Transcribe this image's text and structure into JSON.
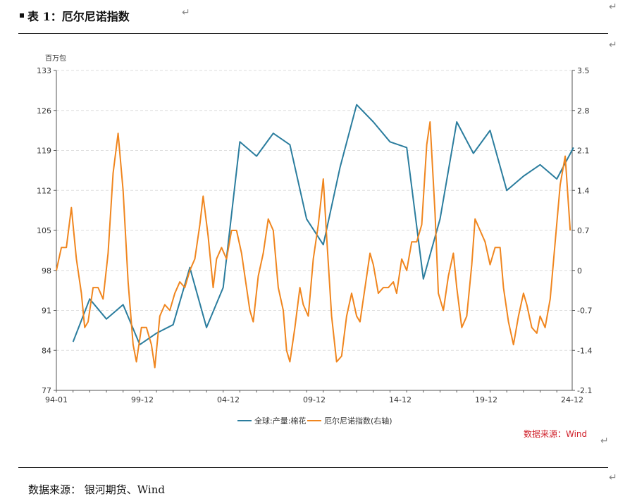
{
  "header": {
    "title": "表 1：厄尔尼诺指数"
  },
  "footer": {
    "source": "数据来源：  银河期货、Wind"
  },
  "chart_data": {
    "type": "line",
    "title": "表 1：厄尔尼诺指数",
    "left_axis_unit": "百万包",
    "source_label": "数据来源：Wind",
    "x_tick_labels": [
      "94-01",
      "99-12",
      "04-12",
      "09-12",
      "14-12",
      "19-12",
      "24-12"
    ],
    "x_range": [
      1994.0,
      2024.92
    ],
    "y_left": {
      "min": 77,
      "max": 133,
      "ticks": [
        77,
        84,
        91,
        98,
        105,
        112,
        119,
        126,
        133
      ]
    },
    "y_right": {
      "min": -2.1,
      "max": 3.5,
      "ticks": [
        "-2.1",
        "-1.4",
        "-0.7",
        "0",
        "0.7",
        "1.4",
        "2.1",
        "2.8",
        "3.5"
      ]
    },
    "grid": "horizontal dashed",
    "legend_position": "bottom",
    "colors": {
      "production": "#2b7d9e",
      "enso": "#f0861f"
    },
    "series": [
      {
        "name": "全球:产量:棉花",
        "axis": "left",
        "points": [
          [
            1995.0,
            85.5
          ],
          [
            1996.0,
            93.0
          ],
          [
            1997.0,
            89.5
          ],
          [
            1998.0,
            92.0
          ],
          [
            1999.0,
            85.0
          ],
          [
            2000.0,
            87.0
          ],
          [
            2001.0,
            88.5
          ],
          [
            2002.0,
            98.5
          ],
          [
            2003.0,
            88.0
          ],
          [
            2004.0,
            95.0
          ],
          [
            2005.0,
            120.5
          ],
          [
            2006.0,
            118.0
          ],
          [
            2007.0,
            122.0
          ],
          [
            2008.0,
            120.0
          ],
          [
            2009.0,
            107.0
          ],
          [
            2010.0,
            102.5
          ],
          [
            2011.0,
            116.0
          ],
          [
            2012.0,
            127.0
          ],
          [
            2013.0,
            124.0
          ],
          [
            2014.0,
            120.5
          ],
          [
            2015.0,
            119.5
          ],
          [
            2016.0,
            96.5
          ],
          [
            2017.0,
            107.0
          ],
          [
            2018.0,
            124.0
          ],
          [
            2019.0,
            118.5
          ],
          [
            2020.0,
            122.5
          ],
          [
            2021.0,
            112.0
          ],
          [
            2022.0,
            114.5
          ],
          [
            2023.0,
            116.5
          ],
          [
            2024.0,
            114.0
          ],
          [
            2025.0,
            119.5
          ]
        ]
      },
      {
        "name": "厄尔尼诺指数(右轴)",
        "axis": "right",
        "points": [
          [
            1994.0,
            0.0
          ],
          [
            1994.3,
            0.4
          ],
          [
            1994.6,
            0.4
          ],
          [
            1994.9,
            1.1
          ],
          [
            1995.2,
            0.2
          ],
          [
            1995.5,
            -0.4
          ],
          [
            1995.7,
            -1.0
          ],
          [
            1995.9,
            -0.9
          ],
          [
            1996.2,
            -0.3
          ],
          [
            1996.5,
            -0.3
          ],
          [
            1996.8,
            -0.5
          ],
          [
            1997.1,
            0.3
          ],
          [
            1997.4,
            1.7
          ],
          [
            1997.7,
            2.4
          ],
          [
            1998.0,
            1.4
          ],
          [
            1998.3,
            -0.2
          ],
          [
            1998.6,
            -1.3
          ],
          [
            1998.8,
            -1.6
          ],
          [
            1999.1,
            -1.0
          ],
          [
            1999.4,
            -1.0
          ],
          [
            1999.7,
            -1.3
          ],
          [
            1999.9,
            -1.7
          ],
          [
            2000.2,
            -0.8
          ],
          [
            2000.5,
            -0.6
          ],
          [
            2000.8,
            -0.7
          ],
          [
            2001.1,
            -0.4
          ],
          [
            2001.4,
            -0.2
          ],
          [
            2001.7,
            -0.3
          ],
          [
            2002.0,
            -0.0
          ],
          [
            2002.3,
            0.2
          ],
          [
            2002.6,
            0.8
          ],
          [
            2002.8,
            1.3
          ],
          [
            2003.1,
            0.6
          ],
          [
            2003.4,
            -0.3
          ],
          [
            2003.6,
            0.2
          ],
          [
            2003.9,
            0.4
          ],
          [
            2004.2,
            0.2
          ],
          [
            2004.5,
            0.7
          ],
          [
            2004.8,
            0.7
          ],
          [
            2005.1,
            0.3
          ],
          [
            2005.3,
            -0.1
          ],
          [
            2005.6,
            -0.7
          ],
          [
            2005.8,
            -0.9
          ],
          [
            2006.1,
            -0.1
          ],
          [
            2006.4,
            0.3
          ],
          [
            2006.7,
            0.9
          ],
          [
            2007.0,
            0.7
          ],
          [
            2007.3,
            -0.3
          ],
          [
            2007.6,
            -0.7
          ],
          [
            2007.8,
            -1.4
          ],
          [
            2008.0,
            -1.6
          ],
          [
            2008.3,
            -1.0
          ],
          [
            2008.6,
            -0.3
          ],
          [
            2008.8,
            -0.6
          ],
          [
            2009.1,
            -0.8
          ],
          [
            2009.4,
            0.2
          ],
          [
            2009.7,
            0.8
          ],
          [
            2010.0,
            1.6
          ],
          [
            2010.2,
            0.6
          ],
          [
            2010.5,
            -0.8
          ],
          [
            2010.8,
            -1.6
          ],
          [
            2011.1,
            -1.5
          ],
          [
            2011.4,
            -0.8
          ],
          [
            2011.7,
            -0.4
          ],
          [
            2012.0,
            -0.8
          ],
          [
            2012.2,
            -0.9
          ],
          [
            2012.5,
            -0.3
          ],
          [
            2012.8,
            0.3
          ],
          [
            2013.0,
            0.1
          ],
          [
            2013.3,
            -0.4
          ],
          [
            2013.6,
            -0.3
          ],
          [
            2013.9,
            -0.3
          ],
          [
            2014.2,
            -0.2
          ],
          [
            2014.4,
            -0.4
          ],
          [
            2014.7,
            0.2
          ],
          [
            2015.0,
            0.0
          ],
          [
            2015.3,
            0.5
          ],
          [
            2015.6,
            0.5
          ],
          [
            2015.9,
            0.8
          ],
          [
            2016.2,
            2.2
          ],
          [
            2016.4,
            2.6
          ],
          [
            2016.7,
            1.0
          ],
          [
            2016.9,
            -0.4
          ],
          [
            2017.2,
            -0.7
          ],
          [
            2017.5,
            -0.1
          ],
          [
            2017.8,
            0.3
          ],
          [
            2018.0,
            -0.3
          ],
          [
            2018.3,
            -1.0
          ],
          [
            2018.6,
            -0.8
          ],
          [
            2018.9,
            0.1
          ],
          [
            2019.1,
            0.9
          ],
          [
            2019.4,
            0.7
          ],
          [
            2019.7,
            0.5
          ],
          [
            2020.0,
            0.1
          ],
          [
            2020.3,
            0.4
          ],
          [
            2020.6,
            0.4
          ],
          [
            2020.8,
            -0.3
          ],
          [
            2021.1,
            -0.9
          ],
          [
            2021.4,
            -1.3
          ],
          [
            2021.7,
            -0.8
          ],
          [
            2022.0,
            -0.4
          ],
          [
            2022.2,
            -0.6
          ],
          [
            2022.5,
            -1.0
          ],
          [
            2022.8,
            -1.1
          ],
          [
            2023.0,
            -0.8
          ],
          [
            2023.3,
            -1.0
          ],
          [
            2023.6,
            -0.5
          ],
          [
            2023.9,
            0.5
          ],
          [
            2024.2,
            1.5
          ],
          [
            2024.5,
            2.0
          ],
          [
            2024.8,
            0.7
          ]
        ]
      }
    ]
  }
}
